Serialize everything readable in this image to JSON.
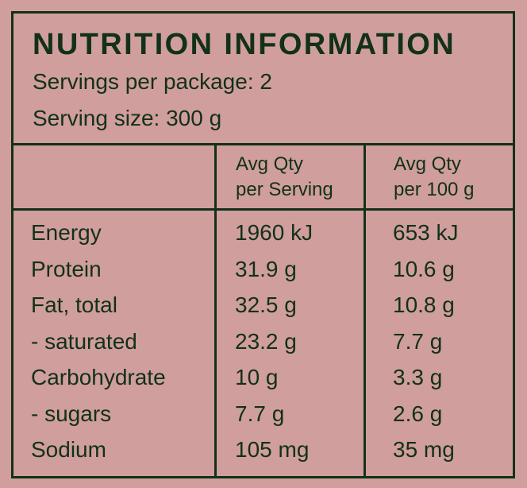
{
  "title": "NUTRITION INFORMATION",
  "servings_per_package": "Servings per package: 2",
  "serving_size": "Serving size: 300 g",
  "columns": {
    "per_serving": [
      "Avg Qty",
      "per Serving"
    ],
    "per_100g": [
      "Avg Qty",
      "per 100 g"
    ]
  },
  "rows": [
    {
      "name": "Energy",
      "per_serving": "1960 kJ",
      "per_100g": "653 kJ"
    },
    {
      "name": "Protein",
      "per_serving": "31.9 g",
      "per_100g": "10.6 g"
    },
    {
      "name": "Fat, total",
      "per_serving": "32.5 g",
      "per_100g": "10.8 g"
    },
    {
      "name": "- saturated",
      "per_serving": "23.2 g",
      "per_100g": "7.7 g"
    },
    {
      "name": "Carbohydrate",
      "per_serving": "10 g",
      "per_100g": "3.3 g"
    },
    {
      "name": "- sugars",
      "per_serving": "7.7 g",
      "per_100g": "2.6 g"
    },
    {
      "name": "Sodium",
      "per_serving": "105 mg",
      "per_100g": "35 mg"
    }
  ],
  "colors": {
    "background": "#d09e9c",
    "ink": "#12301a"
  }
}
